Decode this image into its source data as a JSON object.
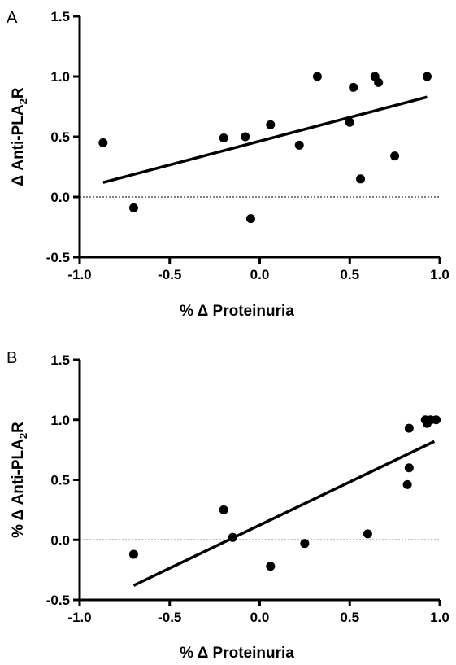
{
  "chart_data": [
    {
      "panel": "A",
      "type": "scatter",
      "xlabel": "% Δ Proteinuria",
      "ylabel_main": "Δ Anti-PLA",
      "ylabel_sub": "2",
      "ylabel_tail": "R",
      "xlim": [
        -1.0,
        1.0
      ],
      "ylim": [
        -0.5,
        1.5
      ],
      "xticks": [
        "-1.0",
        "-0.5",
        "0.0",
        "0.5",
        "1.0"
      ],
      "yticks": [
        "-0.5",
        "0.0",
        "0.5",
        "1.0",
        "1.5"
      ],
      "points": [
        {
          "x": -0.87,
          "y": 0.45
        },
        {
          "x": -0.7,
          "y": -0.09
        },
        {
          "x": -0.2,
          "y": 0.49
        },
        {
          "x": -0.08,
          "y": 0.5
        },
        {
          "x": -0.05,
          "y": -0.18
        },
        {
          "x": 0.06,
          "y": 0.6
        },
        {
          "x": 0.22,
          "y": 0.43
        },
        {
          "x": 0.32,
          "y": 1.0
        },
        {
          "x": 0.5,
          "y": 0.62
        },
        {
          "x": 0.52,
          "y": 0.91
        },
        {
          "x": 0.56,
          "y": 0.15
        },
        {
          "x": 0.64,
          "y": 1.0
        },
        {
          "x": 0.66,
          "y": 0.95
        },
        {
          "x": 0.75,
          "y": 0.34
        },
        {
          "x": 0.93,
          "y": 1.0
        }
      ],
      "fit_line": [
        {
          "x": -0.87,
          "y": 0.12
        },
        {
          "x": 0.93,
          "y": 0.83
        }
      ],
      "reference_line_y": 0.0,
      "grid": false
    },
    {
      "panel": "B",
      "type": "scatter",
      "xlabel": "% Δ Proteinuria",
      "ylabel_main": "% Δ Anti-PLA",
      "ylabel_sub": "2",
      "ylabel_tail": "R",
      "xlim": [
        -1.0,
        1.0
      ],
      "ylim": [
        -0.5,
        1.5
      ],
      "xticks": [
        "-1.0",
        "-0.5",
        "0.0",
        "0.5",
        "1.0"
      ],
      "yticks": [
        "-0.5",
        "0.0",
        "0.5",
        "1.0",
        "1.5"
      ],
      "points": [
        {
          "x": -0.7,
          "y": -0.12
        },
        {
          "x": -0.2,
          "y": 0.25
        },
        {
          "x": -0.15,
          "y": 0.02
        },
        {
          "x": 0.06,
          "y": -0.22
        },
        {
          "x": 0.25,
          "y": -0.03
        },
        {
          "x": 0.6,
          "y": 0.05
        },
        {
          "x": 0.82,
          "y": 0.46
        },
        {
          "x": 0.83,
          "y": 0.6
        },
        {
          "x": 0.83,
          "y": 0.93
        },
        {
          "x": 0.92,
          "y": 1.0
        },
        {
          "x": 0.93,
          "y": 0.97
        },
        {
          "x": 0.95,
          "y": 1.0
        },
        {
          "x": 0.98,
          "y": 1.0
        }
      ],
      "fit_line": [
        {
          "x": -0.7,
          "y": -0.38
        },
        {
          "x": 0.97,
          "y": 0.82
        }
      ],
      "reference_line_y": 0.0,
      "grid": false
    }
  ]
}
